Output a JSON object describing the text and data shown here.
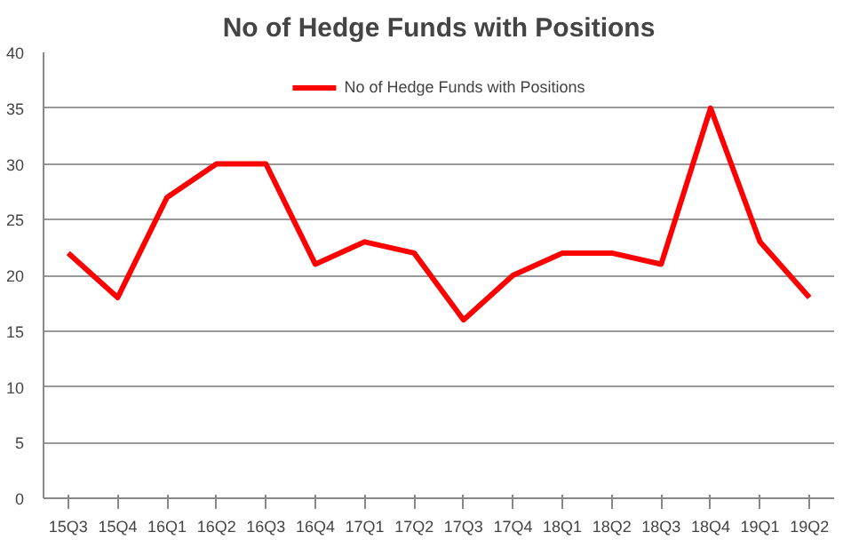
{
  "chart_data": {
    "type": "line",
    "title": "No of Hedge Funds with Positions",
    "categories": [
      "15Q3",
      "15Q4",
      "16Q1",
      "16Q2",
      "16Q3",
      "16Q4",
      "17Q1",
      "17Q2",
      "17Q3",
      "17Q4",
      "18Q1",
      "18Q2",
      "18Q3",
      "18Q4",
      "19Q1",
      "19Q2"
    ],
    "series": [
      {
        "name": "No of Hedge Funds with Positions",
        "color": "#ff0000",
        "values": [
          22,
          18,
          27,
          30,
          30,
          21,
          23,
          22,
          16,
          20,
          22,
          22,
          21,
          35,
          23,
          18
        ]
      }
    ],
    "ylim": [
      0,
      40
    ],
    "yticks": [
      0,
      5,
      10,
      15,
      20,
      25,
      30,
      35,
      40
    ],
    "grid": "y",
    "legend": "top",
    "marker": "none",
    "line_style": "solid"
  }
}
